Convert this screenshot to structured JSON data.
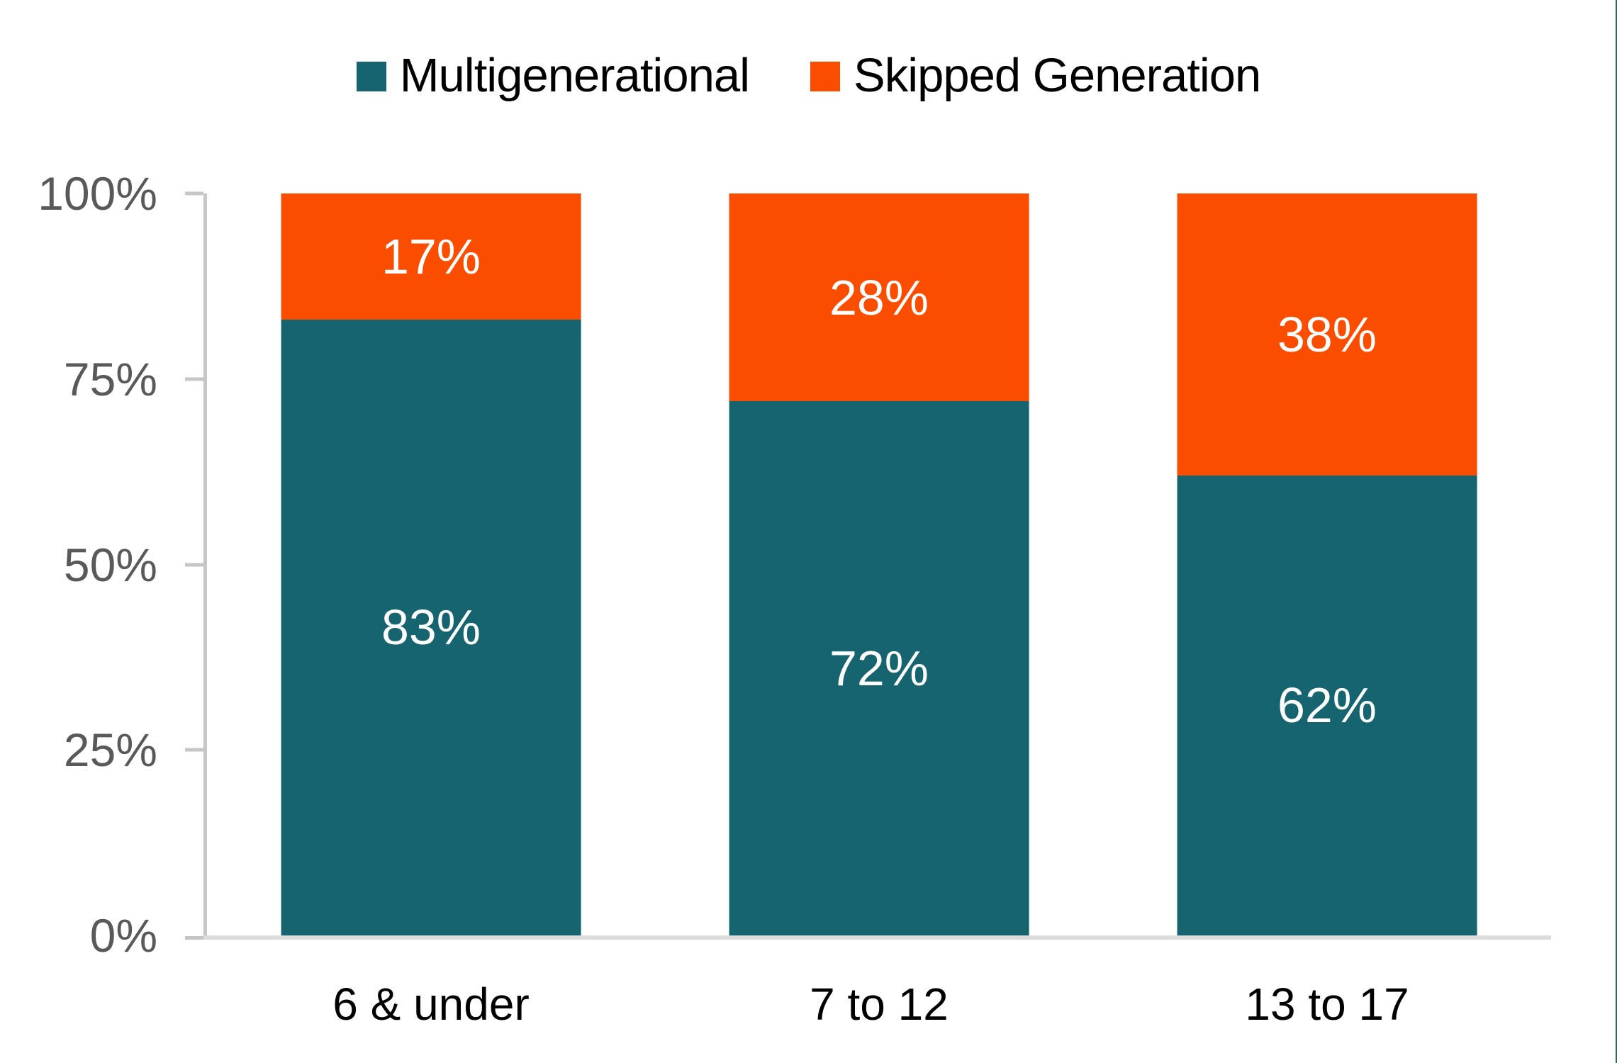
{
  "chart_data": {
    "type": "bar",
    "stacked": true,
    "title": "",
    "categories": [
      "6 & under",
      "7 to 12",
      "13 to 17"
    ],
    "series": [
      {
        "name": "Multigenerational",
        "color": "#15646F",
        "values": [
          83,
          72,
          62
        ],
        "labels": [
          "83%",
          "72%",
          "62%"
        ]
      },
      {
        "name": "Skipped Generation",
        "color": "#FA4D00",
        "values": [
          17,
          28,
          38
        ],
        "labels": [
          "17%",
          "28%",
          "38%"
        ]
      }
    ],
    "xlabel": "",
    "ylabel": "",
    "ylim": [
      0,
      100
    ],
    "yticks": [
      "0%",
      "25%",
      "50%",
      "75%",
      "100%"
    ],
    "legend_position": "top",
    "grid": false,
    "value_suffix": "%"
  },
  "legend": {
    "items": [
      {
        "label": "Multigenerational",
        "color": "#15646F"
      },
      {
        "label": "Skipped Generation",
        "color": "#FA4D00"
      }
    ]
  },
  "colors": {
    "multigenerational": "#15646F",
    "skipped_generation": "#FA4D00",
    "axis_text": "#595959",
    "axis_line": "#C6C6C6",
    "baseline": "#DCDCDC",
    "category_text": "#000000",
    "edge_line": "#2F6B51"
  }
}
